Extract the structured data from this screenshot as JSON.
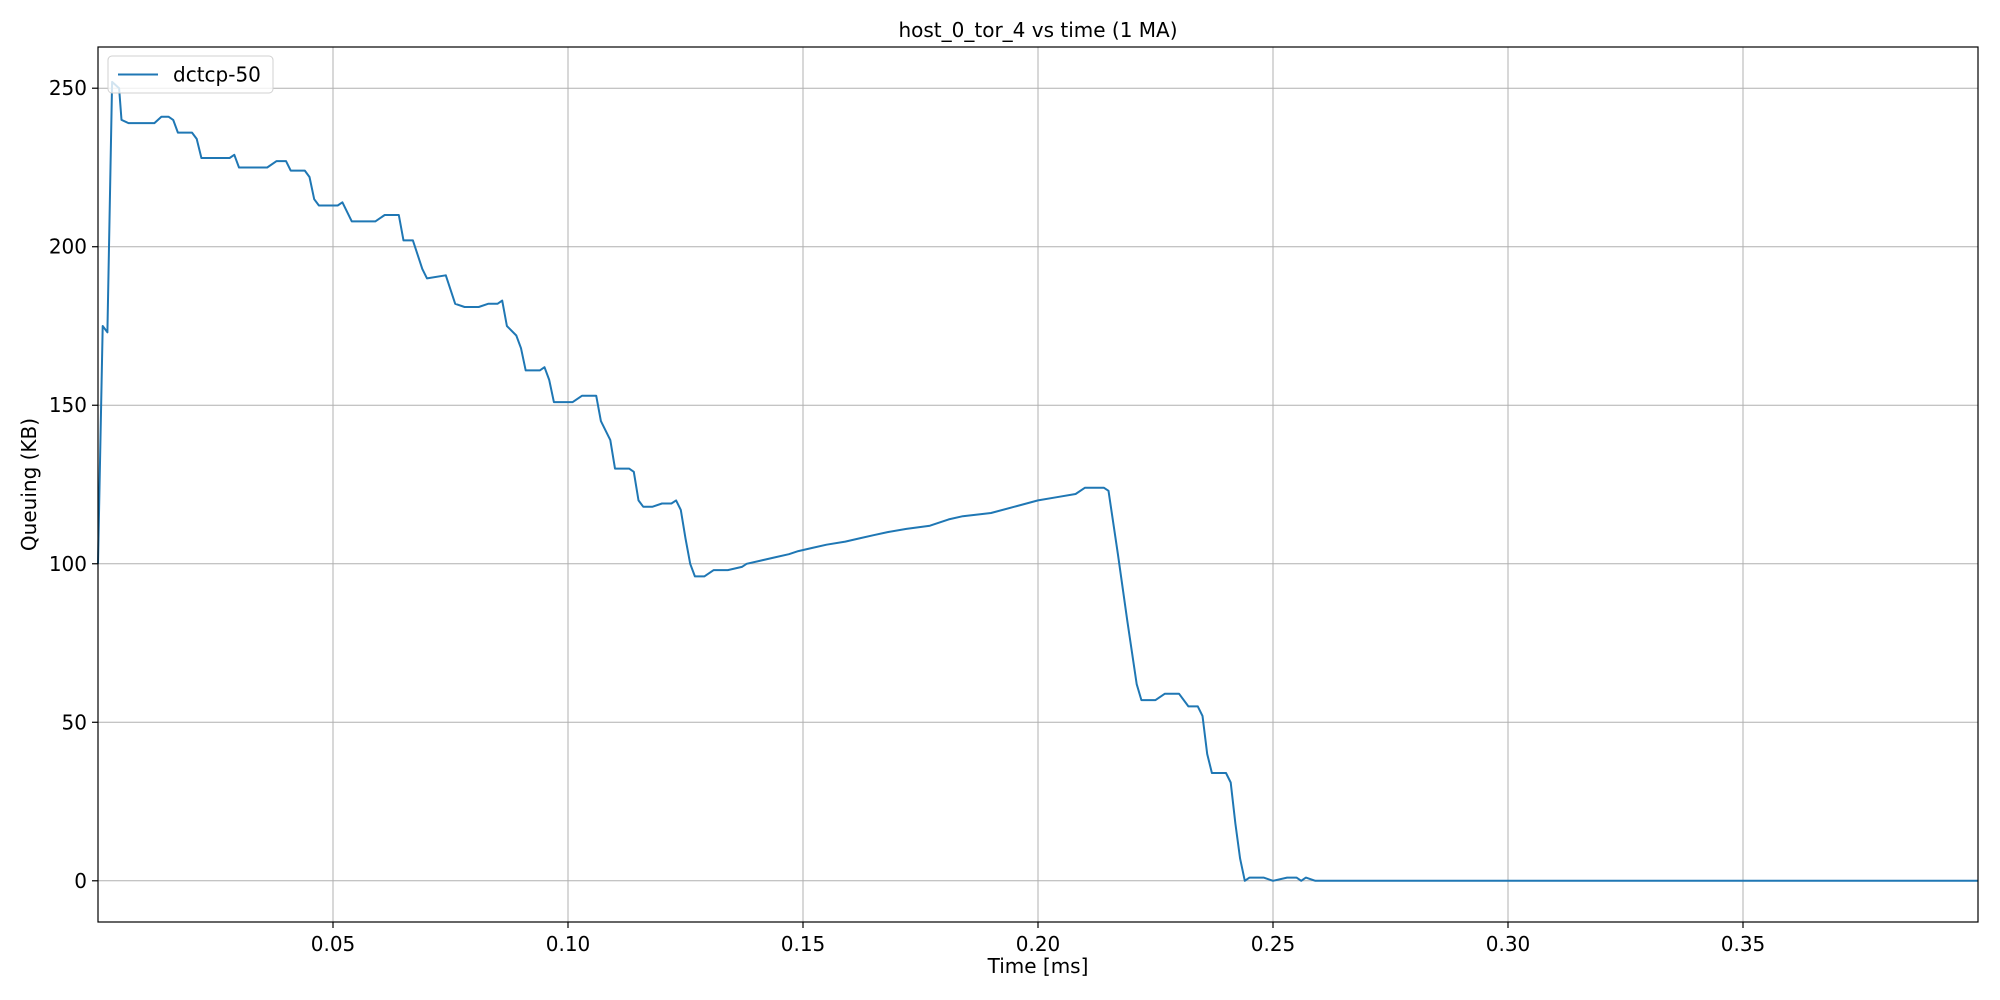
{
  "chart_data": {
    "type": "line",
    "title": "host_0_tor_4 vs time (1 MA)",
    "xlabel": "Time [ms]",
    "ylabel": "Queuing (KB)",
    "xlim": [
      0.0,
      0.4
    ],
    "ylim": [
      -13,
      263
    ],
    "x_ticks": [
      0.05,
      0.1,
      0.15,
      0.2,
      0.25,
      0.3,
      0.35
    ],
    "x_tick_labels": [
      "0.05",
      "0.10",
      "0.15",
      "0.20",
      "0.25",
      "0.30",
      "0.35"
    ],
    "y_ticks": [
      0,
      50,
      100,
      150,
      200,
      250
    ],
    "y_tick_labels": [
      "0",
      "50",
      "100",
      "150",
      "200",
      "250"
    ],
    "grid": true,
    "legend_position": "top-left",
    "series": [
      {
        "name": "dctcp-50",
        "color": "#1f77b4",
        "points": [
          [
            0.0,
            100
          ],
          [
            0.001,
            175
          ],
          [
            0.002,
            173
          ],
          [
            0.003,
            252
          ],
          [
            0.0045,
            250
          ],
          [
            0.005,
            240
          ],
          [
            0.0065,
            239
          ],
          [
            0.012,
            239
          ],
          [
            0.0135,
            241
          ],
          [
            0.015,
            241
          ],
          [
            0.016,
            240
          ],
          [
            0.017,
            236
          ],
          [
            0.02,
            236
          ],
          [
            0.021,
            234
          ],
          [
            0.022,
            228
          ],
          [
            0.028,
            228
          ],
          [
            0.029,
            229
          ],
          [
            0.03,
            225
          ],
          [
            0.036,
            225
          ],
          [
            0.038,
            227
          ],
          [
            0.04,
            227
          ],
          [
            0.041,
            224
          ],
          [
            0.044,
            224
          ],
          [
            0.045,
            222
          ],
          [
            0.046,
            215
          ],
          [
            0.047,
            213
          ],
          [
            0.051,
            213
          ],
          [
            0.052,
            214
          ],
          [
            0.054,
            208
          ],
          [
            0.059,
            208
          ],
          [
            0.061,
            210
          ],
          [
            0.064,
            210
          ],
          [
            0.065,
            202
          ],
          [
            0.067,
            202
          ],
          [
            0.069,
            193
          ],
          [
            0.07,
            190
          ],
          [
            0.074,
            191
          ],
          [
            0.076,
            182
          ],
          [
            0.078,
            181
          ],
          [
            0.081,
            181
          ],
          [
            0.083,
            182
          ],
          [
            0.085,
            182
          ],
          [
            0.086,
            183
          ],
          [
            0.087,
            175
          ],
          [
            0.089,
            172
          ],
          [
            0.09,
            168
          ],
          [
            0.091,
            161
          ],
          [
            0.094,
            161
          ],
          [
            0.095,
            162
          ],
          [
            0.096,
            158
          ],
          [
            0.097,
            151
          ],
          [
            0.101,
            151
          ],
          [
            0.103,
            153
          ],
          [
            0.106,
            153
          ],
          [
            0.107,
            145
          ],
          [
            0.109,
            139
          ],
          [
            0.11,
            130
          ],
          [
            0.113,
            130
          ],
          [
            0.114,
            129
          ],
          [
            0.115,
            120
          ],
          [
            0.116,
            118
          ],
          [
            0.118,
            118
          ],
          [
            0.12,
            119
          ],
          [
            0.122,
            119
          ],
          [
            0.123,
            120
          ],
          [
            0.124,
            117
          ],
          [
            0.125,
            108
          ],
          [
            0.126,
            100
          ],
          [
            0.127,
            96
          ],
          [
            0.129,
            96
          ],
          [
            0.131,
            98
          ],
          [
            0.134,
            98
          ],
          [
            0.137,
            99
          ],
          [
            0.138,
            100
          ],
          [
            0.141,
            101
          ],
          [
            0.144,
            102
          ],
          [
            0.147,
            103
          ],
          [
            0.149,
            104
          ],
          [
            0.152,
            105
          ],
          [
            0.155,
            106
          ],
          [
            0.159,
            107
          ],
          [
            0.162,
            108
          ],
          [
            0.165,
            109
          ],
          [
            0.168,
            110
          ],
          [
            0.172,
            111
          ],
          [
            0.177,
            112
          ],
          [
            0.181,
            114
          ],
          [
            0.184,
            115
          ],
          [
            0.19,
            116
          ],
          [
            0.195,
            118
          ],
          [
            0.2,
            120
          ],
          [
            0.204,
            121
          ],
          [
            0.208,
            122
          ],
          [
            0.21,
            124
          ],
          [
            0.214,
            124
          ],
          [
            0.215,
            123
          ],
          [
            0.217,
            103
          ],
          [
            0.219,
            82
          ],
          [
            0.221,
            62
          ],
          [
            0.222,
            57
          ],
          [
            0.225,
            57
          ],
          [
            0.227,
            59
          ],
          [
            0.23,
            59
          ],
          [
            0.232,
            55
          ],
          [
            0.234,
            55
          ],
          [
            0.235,
            52
          ],
          [
            0.236,
            40
          ],
          [
            0.237,
            34
          ],
          [
            0.24,
            34
          ],
          [
            0.241,
            31
          ],
          [
            0.242,
            18
          ],
          [
            0.243,
            7
          ],
          [
            0.244,
            0
          ],
          [
            0.245,
            1
          ],
          [
            0.248,
            1
          ],
          [
            0.25,
            0
          ],
          [
            0.253,
            1
          ],
          [
            0.255,
            1
          ],
          [
            0.256,
            0
          ],
          [
            0.257,
            1
          ],
          [
            0.259,
            0
          ],
          [
            0.4,
            0
          ]
        ]
      }
    ]
  }
}
